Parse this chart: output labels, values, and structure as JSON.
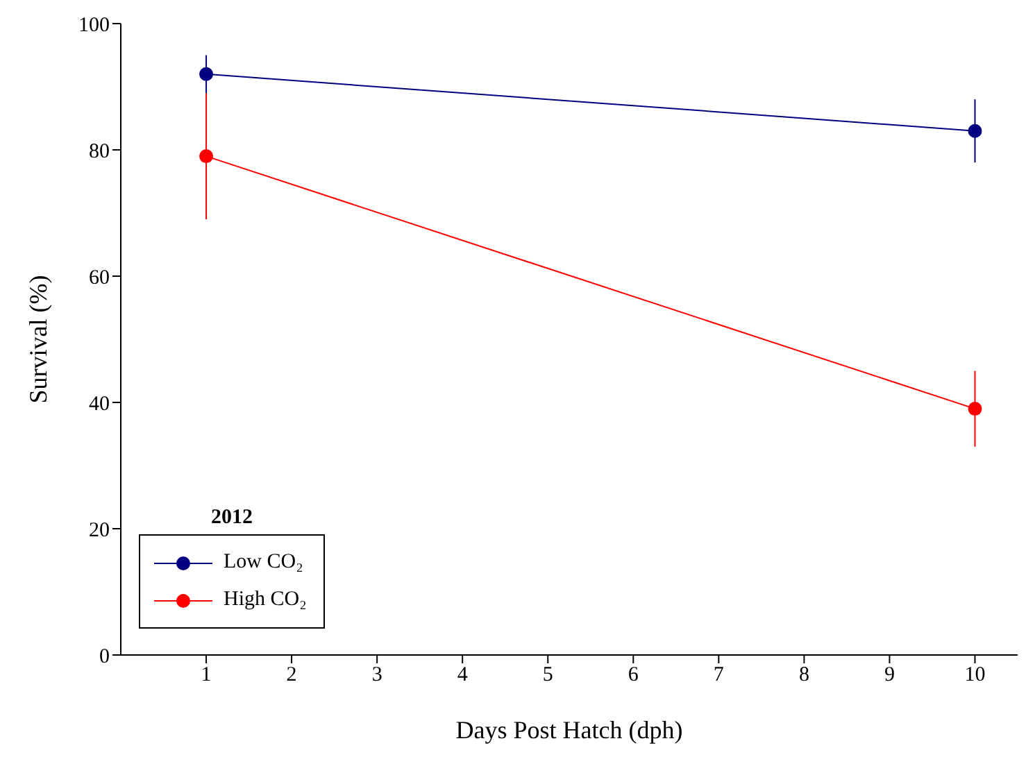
{
  "chart_data": {
    "type": "line",
    "xlabel": "Days Post Hatch (dph)",
    "ylabel": "Survival (%)",
    "legend_title": "2012",
    "x": [
      1,
      10
    ],
    "series": [
      {
        "name": "Low CO₂",
        "color": "#000080",
        "values": [
          92,
          83
        ],
        "errors": [
          3,
          5
        ]
      },
      {
        "name": "High CO₂",
        "color": "#ff0000",
        "values": [
          79,
          39
        ],
        "errors": [
          10,
          6
        ]
      }
    ],
    "xlim": [
      0,
      10.5
    ],
    "xticks": [
      1,
      2,
      3,
      4,
      5,
      6,
      7,
      8,
      9,
      10
    ],
    "ylim": [
      0,
      100
    ],
    "yticks": [
      0,
      20,
      40,
      60,
      80,
      100
    ],
    "grid": false,
    "legend": "bottom left",
    "marker": "circle",
    "line_style": "solid"
  }
}
